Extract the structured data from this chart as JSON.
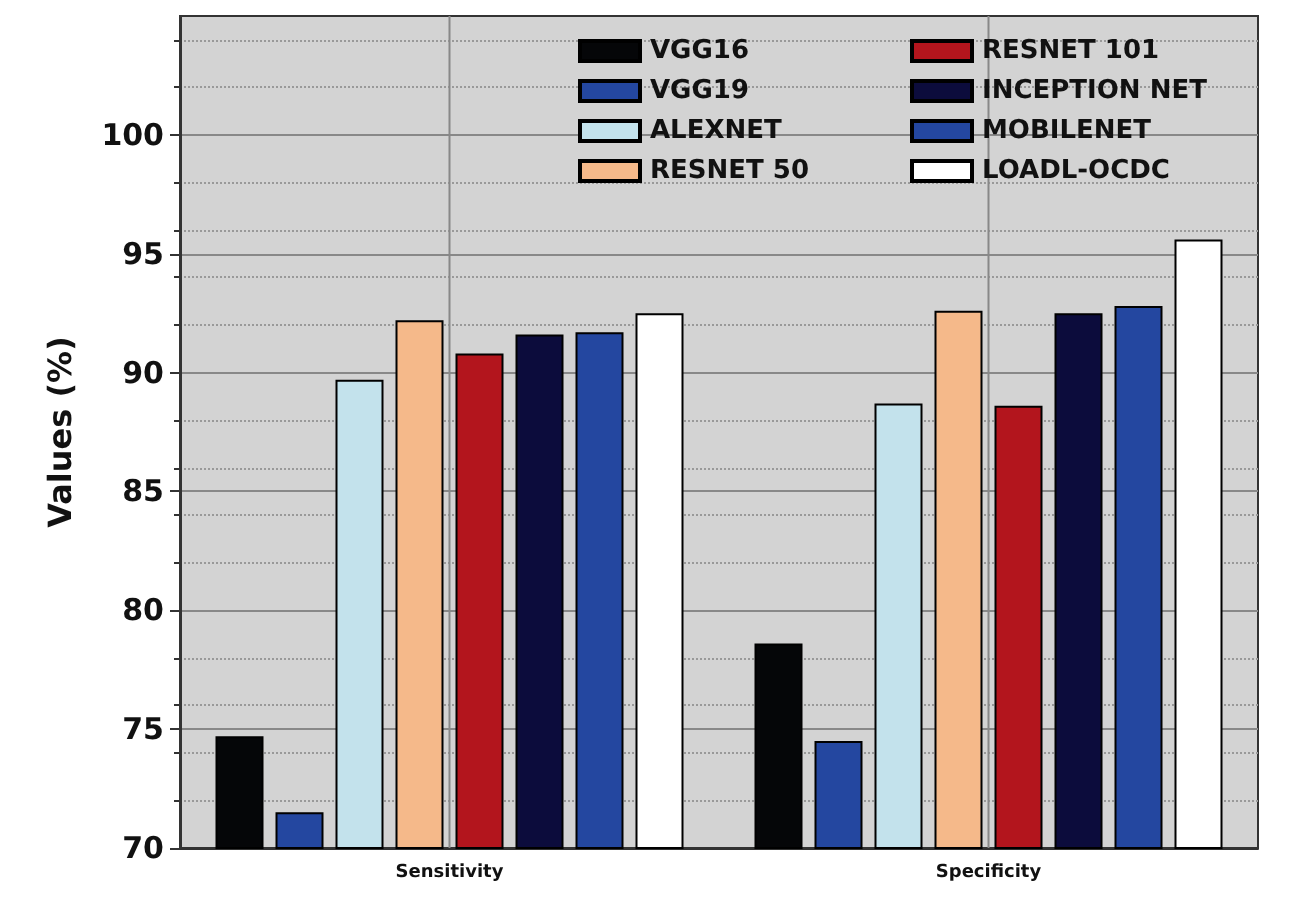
{
  "chart_data": {
    "type": "bar",
    "ylabel": "Values (%)",
    "categories": [
      "Sensitivity",
      "Specificity"
    ],
    "series": [
      {
        "name": "VGG16",
        "color": "#050608",
        "values": [
          74.7,
          78.6
        ]
      },
      {
        "name": "VGG19",
        "color": "#2447a0",
        "values": [
          71.5,
          74.5
        ]
      },
      {
        "name": "ALEXNET",
        "color": "#c3e2ec",
        "values": [
          89.7,
          88.7
        ]
      },
      {
        "name": "RESNET 50",
        "color": "#f5b98a",
        "values": [
          92.2,
          92.6
        ]
      },
      {
        "name": "RESNET 101",
        "color": "#b3151d",
        "values": [
          90.8,
          88.6
        ]
      },
      {
        "name": "INCEPTION NET",
        "color": "#0c0c3c",
        "values": [
          91.6,
          92.5
        ]
      },
      {
        "name": "MOBILENET",
        "color": "#2447a0",
        "values": [
          91.7,
          92.8
        ]
      },
      {
        "name": "LOADL-OCDC",
        "color": "#ffffff",
        "values": [
          92.5,
          95.6
        ]
      }
    ],
    "ylim": [
      70,
      105
    ],
    "yticks": [
      70,
      75,
      80,
      85,
      90,
      95,
      100
    ],
    "grid": true,
    "legend": "top right"
  }
}
